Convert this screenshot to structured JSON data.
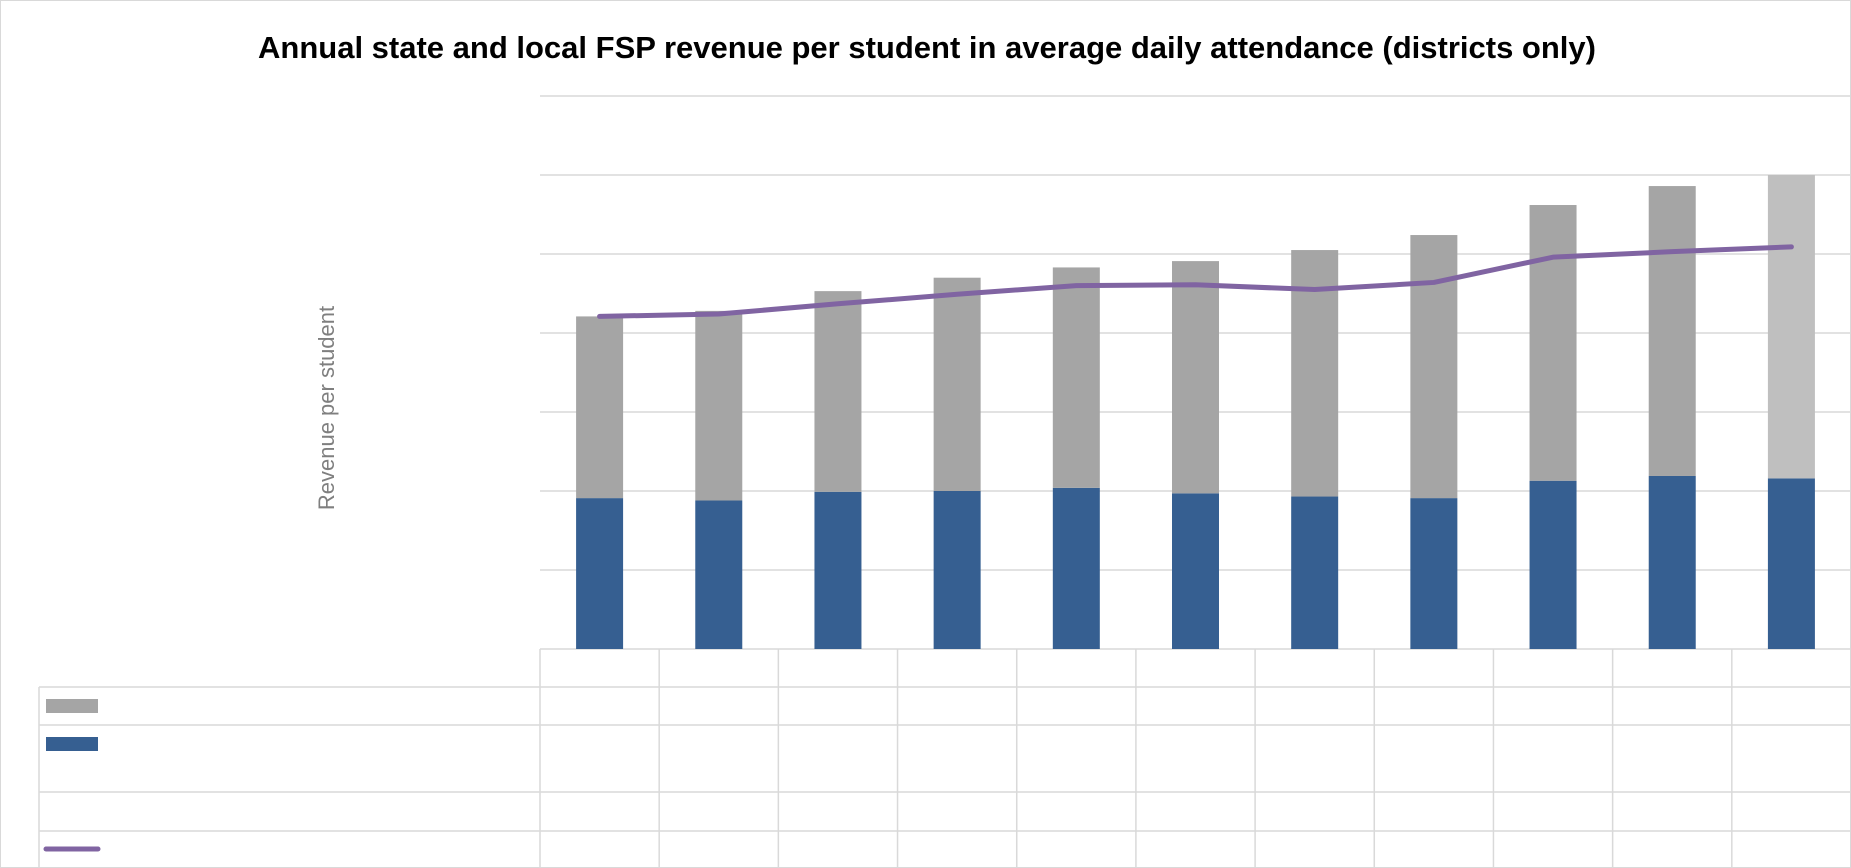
{
  "chart_data": {
    "type": "stacked-bar-line",
    "title": "Annual state and local FSP revenue per student in average daily attendance (districts only)",
    "y_label": "Revenue per student",
    "categories": [
      null,
      null,
      null,
      null,
      null,
      null,
      null,
      null,
      null,
      null,
      null
    ],
    "series": [
      {
        "type": "bar",
        "color": "#365f91",
        "values": [
          1.91,
          1.88,
          1.99,
          2.0,
          2.04,
          1.97,
          1.93,
          1.91,
          2.13,
          2.19,
          2.16
        ]
      },
      {
        "type": "bar",
        "color": "#a5a5a5",
        "colors": [
          "#a5a5a5",
          "#a5a5a5",
          "#a5a5a5",
          "#a5a5a5",
          "#a5a5a5",
          "#a5a5a5",
          "#a5a5a5",
          "#a5a5a5",
          "#a5a5a5",
          "#a5a5a5",
          "#bfbfbf"
        ],
        "values": [
          2.3,
          2.4,
          2.54,
          2.7,
          2.79,
          2.94,
          3.12,
          3.33,
          3.49,
          3.67,
          3.84
        ]
      },
      {
        "type": "line",
        "color": "#8064a2",
        "values": [
          4.21,
          4.24,
          4.37,
          4.49,
          4.6,
          4.61,
          4.55,
          4.64,
          4.96,
          5.03,
          5.09
        ]
      }
    ],
    "ylim": [
      0,
      7
    ],
    "yticks": [
      0,
      1,
      2,
      3,
      4,
      5,
      6,
      7
    ],
    "grid": true
  }
}
